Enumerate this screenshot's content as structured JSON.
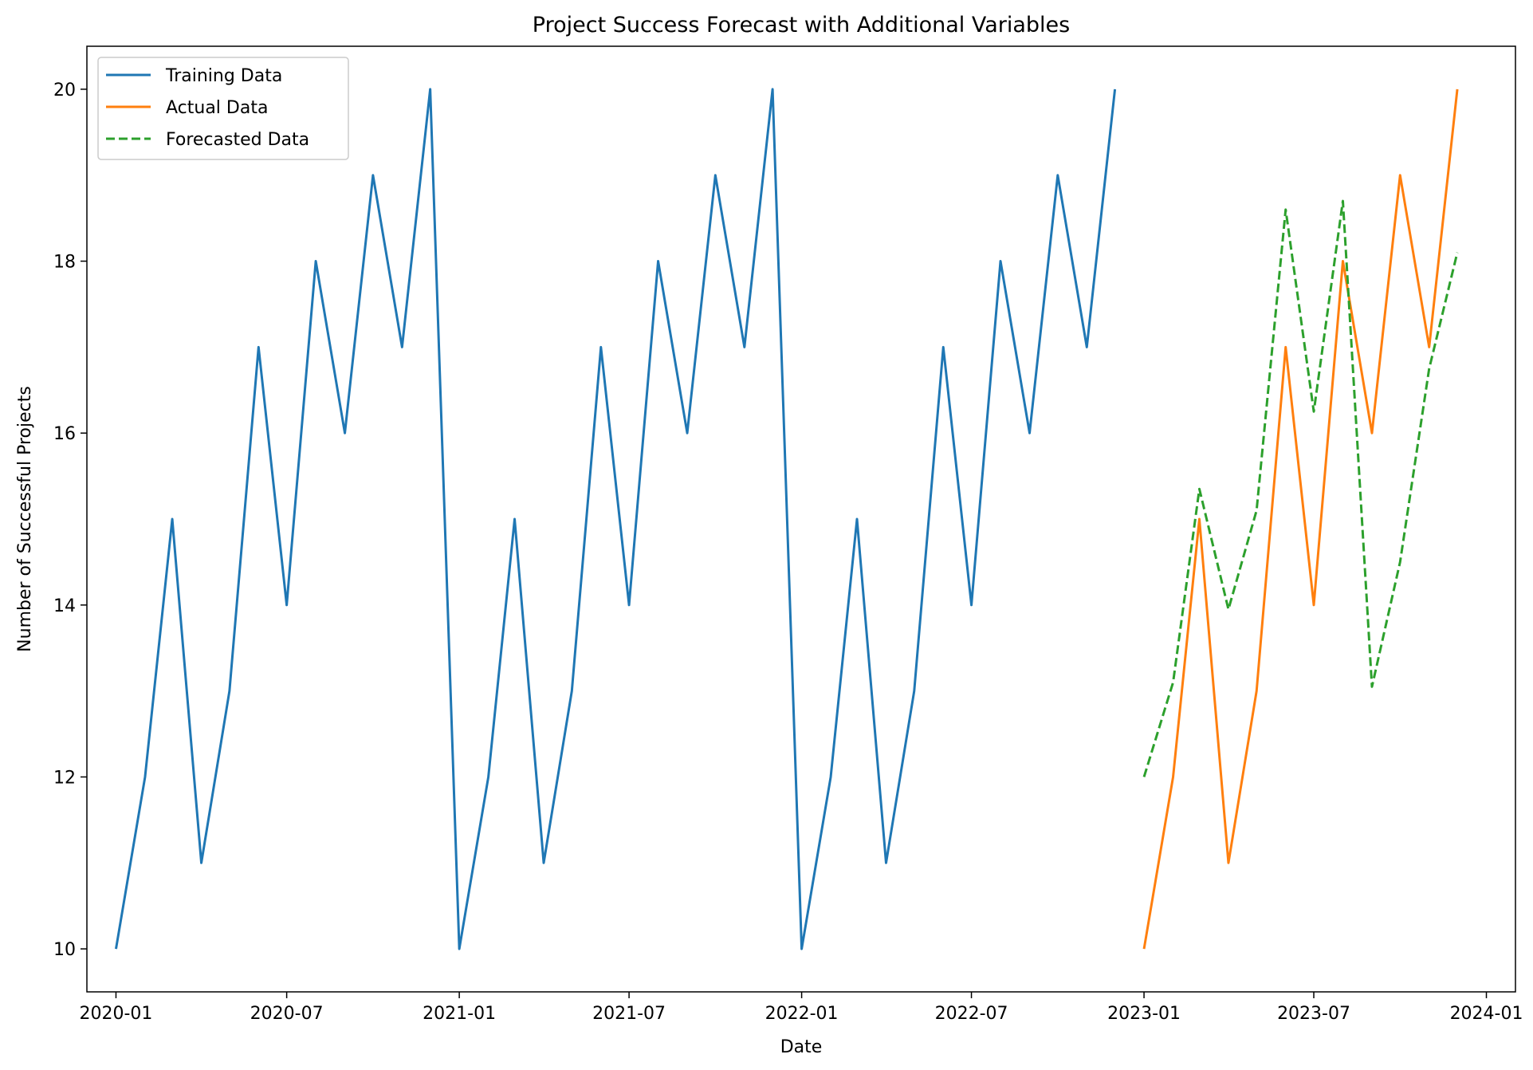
{
  "chart_data": {
    "type": "line",
    "title": "Project Success Forecast with Additional Variables",
    "xlabel": "Date",
    "ylabel": "Number of Successful Projects",
    "xlim": [
      "2019-12-01",
      "2024-02-01"
    ],
    "ylim": [
      9.5,
      20.5
    ],
    "x_ticks": [
      "2020-01",
      "2020-07",
      "2021-01",
      "2021-07",
      "2022-01",
      "2022-07",
      "2023-01",
      "2023-07",
      "2024-01"
    ],
    "y_ticks": [
      10,
      12,
      14,
      16,
      18,
      20
    ],
    "grid": false,
    "legend": {
      "placement": "top-left"
    },
    "series": [
      {
        "name": "Training Data",
        "color": "#1f77b4",
        "style": "solid",
        "x": [
          "2020-01",
          "2020-02",
          "2020-03",
          "2020-04",
          "2020-05",
          "2020-06",
          "2020-07",
          "2020-08",
          "2020-09",
          "2020-10",
          "2020-11",
          "2020-12",
          "2021-01",
          "2021-02",
          "2021-03",
          "2021-04",
          "2021-05",
          "2021-06",
          "2021-07",
          "2021-08",
          "2021-09",
          "2021-10",
          "2021-11",
          "2021-12",
          "2022-01",
          "2022-02",
          "2022-03",
          "2022-04",
          "2022-05",
          "2022-06",
          "2022-07",
          "2022-08",
          "2022-09",
          "2022-10",
          "2022-11",
          "2022-12"
        ],
        "values": [
          10,
          12,
          15,
          11,
          13,
          17,
          14,
          18,
          16,
          19,
          17,
          20,
          10,
          12,
          15,
          11,
          13,
          17,
          14,
          18,
          16,
          19,
          17,
          20,
          10,
          12,
          15,
          11,
          13,
          17,
          14,
          18,
          16,
          19,
          17,
          20
        ]
      },
      {
        "name": "Actual Data",
        "color": "#ff7f0e",
        "style": "solid",
        "x": [
          "2023-01",
          "2023-02",
          "2023-03",
          "2023-04",
          "2023-05",
          "2023-06",
          "2023-07",
          "2023-08",
          "2023-09",
          "2023-10",
          "2023-11",
          "2023-12"
        ],
        "values": [
          10,
          12,
          15,
          11,
          13,
          17,
          14,
          18,
          16,
          19,
          17,
          20
        ]
      },
      {
        "name": "Forecasted Data",
        "color": "#2ca02c",
        "style": "dashed",
        "x": [
          "2023-01",
          "2023-02",
          "2023-03",
          "2023-04",
          "2023-05",
          "2023-06",
          "2023-07",
          "2023-08",
          "2023-09",
          "2023-10",
          "2023-11",
          "2023-12"
        ],
        "values": [
          12.0,
          13.1,
          15.35,
          13.95,
          15.1,
          18.6,
          16.25,
          18.7,
          13.05,
          14.5,
          16.75,
          18.1
        ]
      }
    ]
  }
}
